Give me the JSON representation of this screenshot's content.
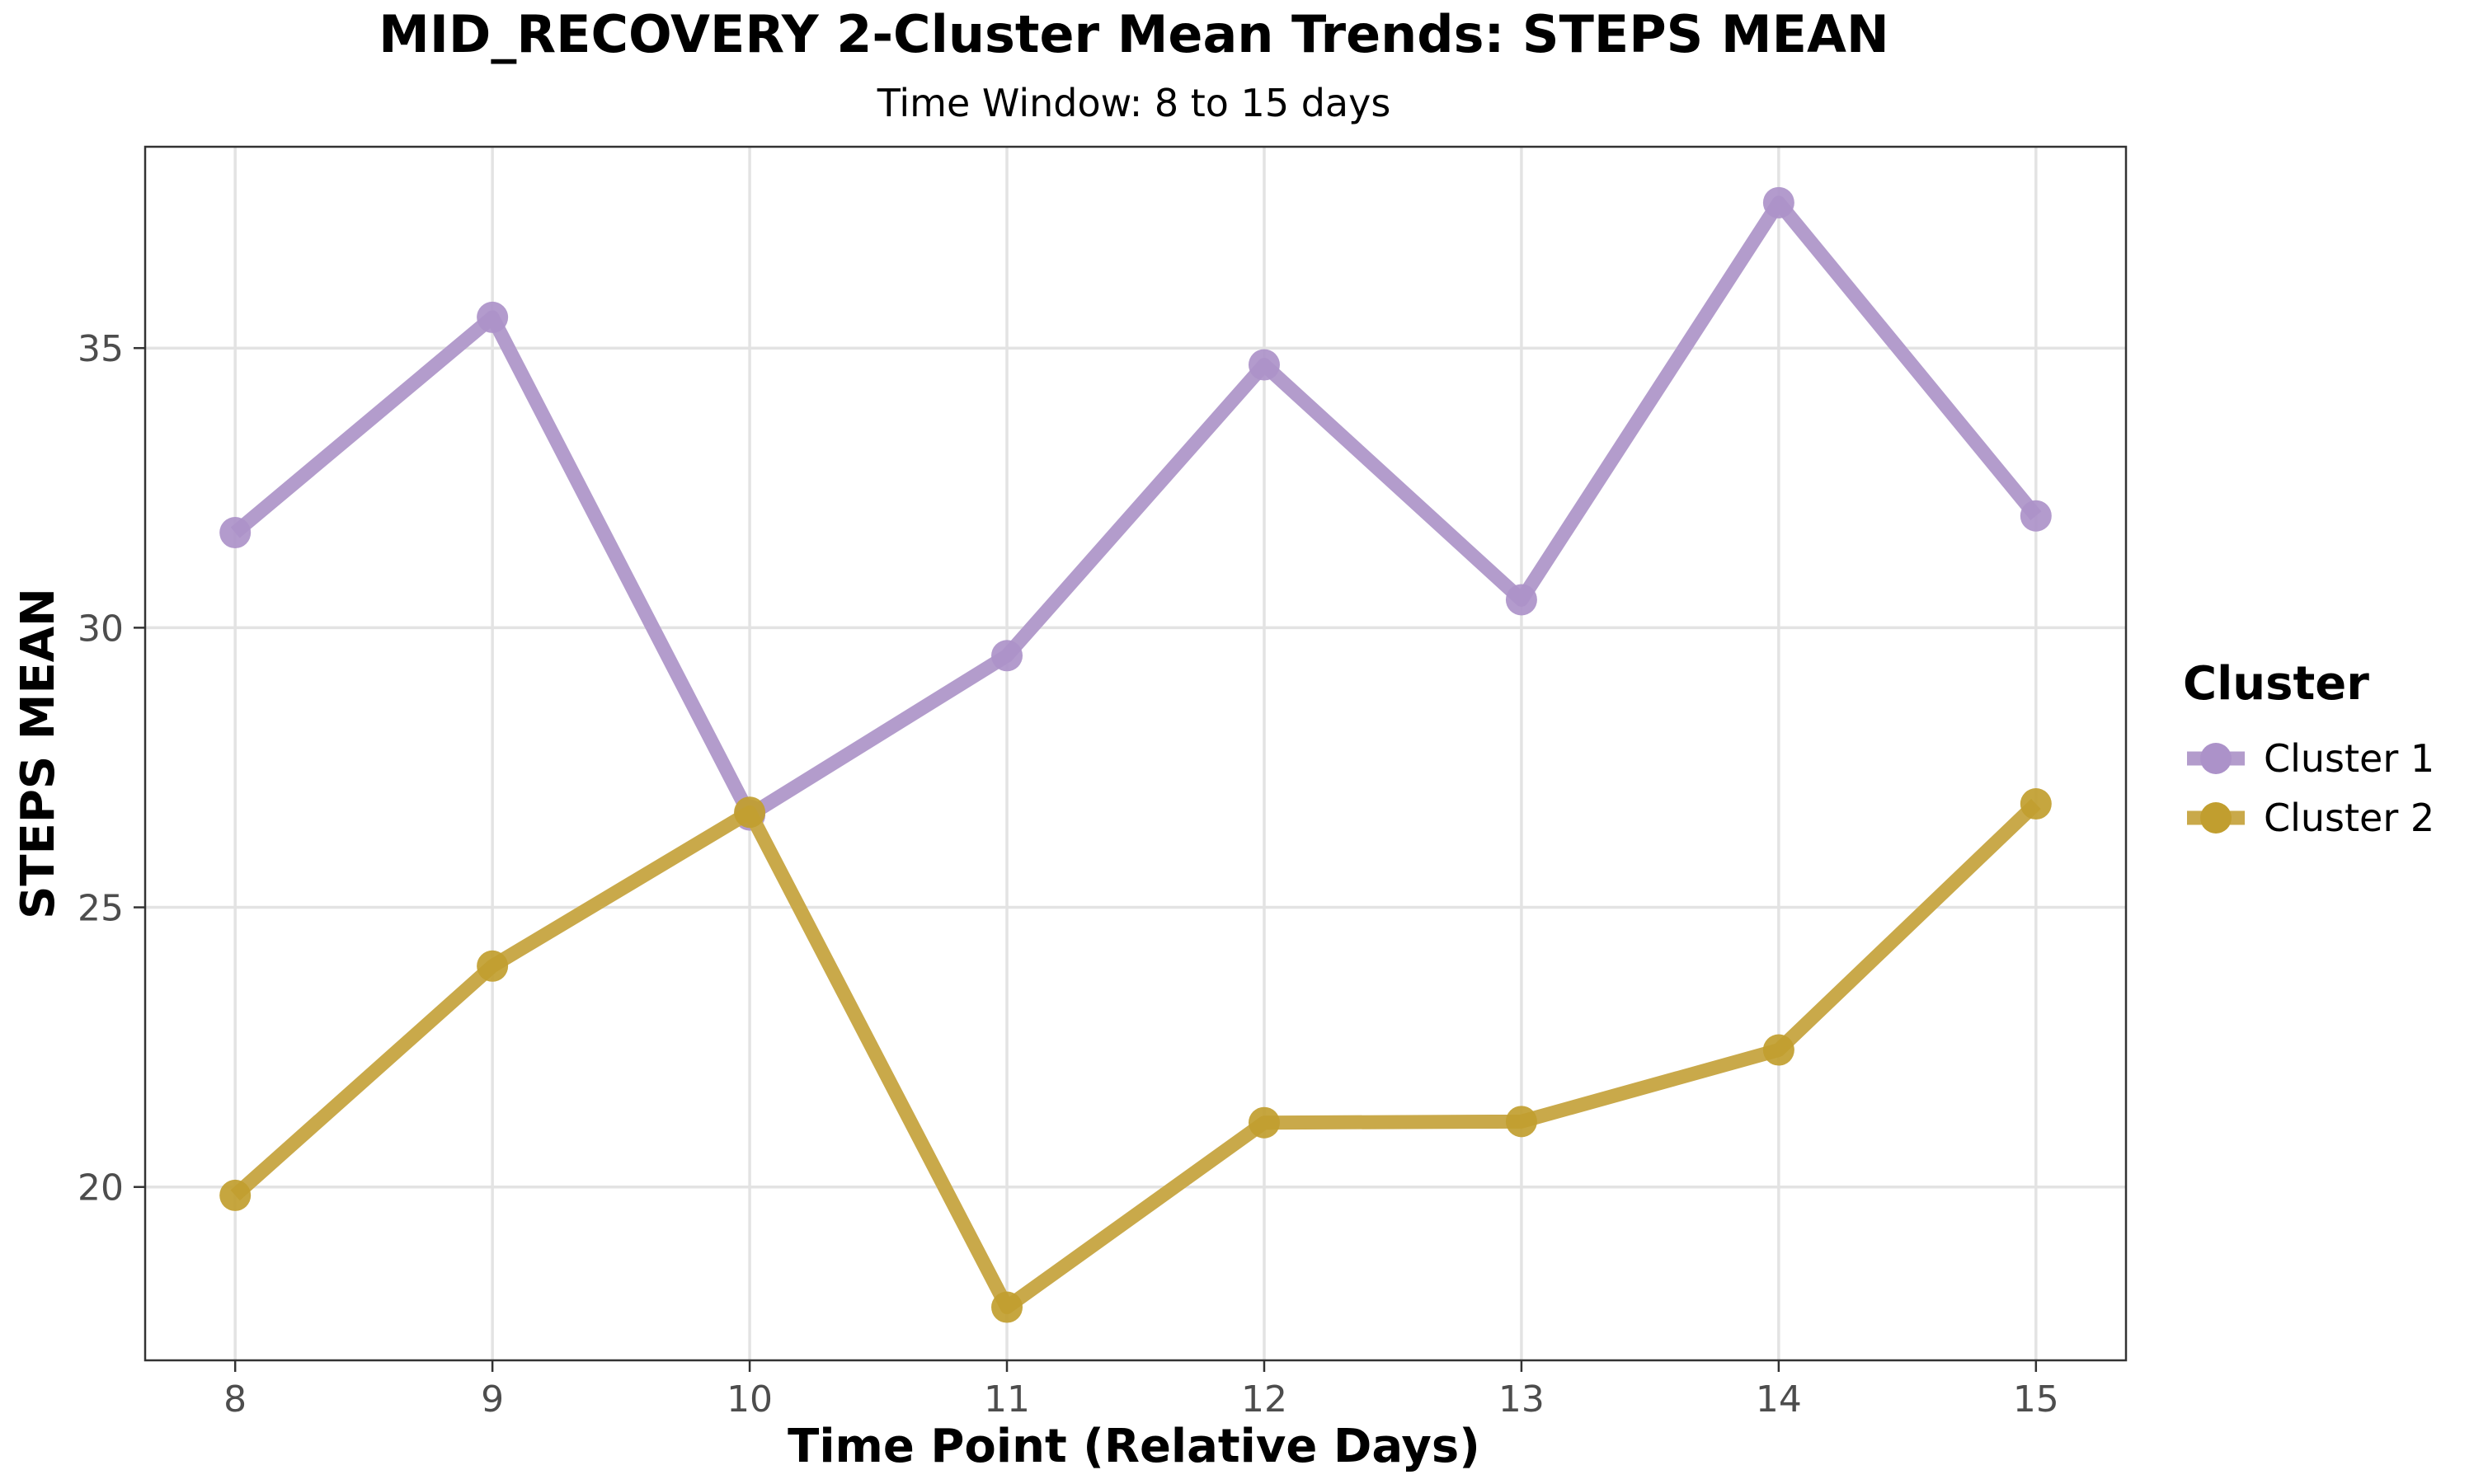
{
  "chart_data": {
    "type": "line",
    "title": "MID_RECOVERY 2-Cluster Mean Trends: STEPS MEAN",
    "subtitle": "Time Window: 8 to 15 days",
    "xlabel": "Time Point (Relative Days)",
    "ylabel": "STEPS MEAN",
    "x": [
      8,
      9,
      10,
      11,
      12,
      13,
      14,
      15
    ],
    "x_tick_labels": [
      "8",
      "9",
      "10",
      "11",
      "12",
      "13",
      "14",
      "15"
    ],
    "y_ticks": [
      20,
      25,
      30,
      35
    ],
    "y_tick_labels": [
      "20",
      "25",
      "30",
      "35"
    ],
    "xlim": [
      7.65,
      15.35
    ],
    "ylim": [
      16.9,
      38.6
    ],
    "grid": true,
    "legend": {
      "title": "Cluster",
      "placement": "right"
    },
    "series": [
      {
        "name": "Cluster 1",
        "color": "#b39ccc",
        "values": [
          31.7,
          35.55,
          26.65,
          29.5,
          34.7,
          30.5,
          37.6,
          32.0
        ]
      },
      {
        "name": "Cluster 2",
        "color": "#c9a94a",
        "values": [
          19.85,
          23.95,
          26.7,
          17.85,
          21.15,
          21.17,
          22.45,
          26.85
        ]
      }
    ],
    "colors": {
      "cluster1_point": "#ac92c9",
      "cluster2_point": "#c19e2f",
      "grid": "#e3e3e3",
      "panel_border": "#333333"
    }
  }
}
